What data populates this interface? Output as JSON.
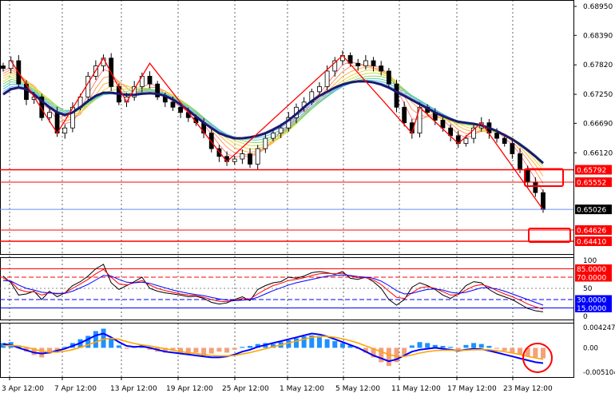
{
  "chart_data": [
    {
      "panel": "price",
      "type": "candlestick",
      "y_ticks": [
        "0.68950",
        "0.68390",
        "0.67820",
        "0.67250",
        "0.66690",
        "0.66120"
      ],
      "ylim": [
        0.6441,
        0.6895
      ],
      "current_price": {
        "value": 0.65026,
        "label": "0.65026"
      },
      "horizontal_levels": [
        {
          "value": 0.65792,
          "label": "0.65792",
          "color": "#ff0000"
        },
        {
          "value": 0.65552,
          "label": "0.65552",
          "color": "#ff0000"
        },
        {
          "value": 0.64626,
          "label": "0.64626",
          "color": "#ff0000"
        },
        {
          "value": 0.6441,
          "label": "0.64410",
          "color": "#ff0000"
        }
      ],
      "x_labels": [
        "3 Apr 12:00",
        "7 Apr 12:00",
        "13 Apr 12:00",
        "19 Apr 12:00",
        "25 Apr 12:00",
        "1 May 12:00",
        "5 May 12:00",
        "11 May 12:00",
        "17 May 12:00",
        "23 May 12:00"
      ],
      "close_series": [
        0.6775,
        0.679,
        0.6745,
        0.6715,
        0.672,
        0.668,
        0.669,
        0.665,
        0.666,
        0.67,
        0.672,
        0.676,
        0.678,
        0.6795,
        0.674,
        0.671,
        0.672,
        0.674,
        0.676,
        0.6745,
        0.672,
        0.671,
        0.67,
        0.669,
        0.668,
        0.667,
        0.665,
        0.662,
        0.6605,
        0.6595,
        0.66,
        0.661,
        0.659,
        0.662,
        0.664,
        0.665,
        0.666,
        0.668,
        0.67,
        0.671,
        0.673,
        0.674,
        0.677,
        0.679,
        0.68,
        0.6785,
        0.678,
        0.679,
        0.678,
        0.677,
        0.6745,
        0.67,
        0.667,
        0.665,
        0.67,
        0.669,
        0.6675,
        0.666,
        0.6645,
        0.663,
        0.664,
        0.666,
        0.667,
        0.665,
        0.664,
        0.663,
        0.661,
        0.658,
        0.6555,
        0.6535,
        0.6502
      ],
      "baseline_ma": [
        0.6725,
        0.6735,
        0.6738,
        0.6735,
        0.6725,
        0.6712,
        0.67,
        0.669,
        0.6685,
        0.669,
        0.67,
        0.6712,
        0.6722,
        0.6728,
        0.6728,
        0.6726,
        0.6724,
        0.6724,
        0.6726,
        0.6727,
        0.6726,
        0.6722,
        0.6715,
        0.6705,
        0.6694,
        0.6682,
        0.667,
        0.666,
        0.665,
        0.6644,
        0.664,
        0.664,
        0.6642,
        0.6645,
        0.665,
        0.6657,
        0.6665,
        0.6675,
        0.6687,
        0.67,
        0.6712,
        0.6722,
        0.673,
        0.6738,
        0.6744,
        0.6748,
        0.675,
        0.675,
        0.6748,
        0.6744,
        0.6738,
        0.673,
        0.6722,
        0.6714,
        0.6706,
        0.6698,
        0.669,
        0.6683,
        0.6677,
        0.6672,
        0.667,
        0.6668,
        0.6665,
        0.666,
        0.6654,
        0.6646,
        0.6638,
        0.6628,
        0.6617,
        0.6605,
        0.6592
      ],
      "zigzag": [
        0.679,
        0.665,
        0.6795,
        0.671,
        0.6785,
        0.6595,
        0.68,
        0.665,
        0.67,
        0.663,
        0.667,
        0.6502
      ]
    },
    {
      "panel": "rsi",
      "type": "line",
      "y_ticks": [
        "100",
        "85.0000",
        "70.0000",
        "50",
        "30.0000",
        "15.0000",
        "0"
      ],
      "ylim": [
        0,
        100
      ],
      "levels": [
        {
          "value": 85,
          "label": "85.0000",
          "color": "#ff0000"
        },
        {
          "value": 70,
          "label": "70.0000",
          "color": "#ff0000"
        },
        {
          "value": 30,
          "label": "30.0000",
          "color": "#0000ff"
        },
        {
          "value": 15,
          "label": "15.0000",
          "color": "#0000ff"
        }
      ],
      "series": [
        {
          "color": "#000000",
          "values": [
            72,
            60,
            38,
            40,
            45,
            30,
            45,
            35,
            42,
            55,
            62,
            72,
            85,
            93,
            60,
            48,
            55,
            62,
            70,
            50,
            45,
            42,
            40,
            38,
            35,
            36,
            32,
            25,
            22,
            24,
            30,
            35,
            28,
            48,
            55,
            60,
            62,
            70,
            68,
            72,
            78,
            80,
            78,
            75,
            80,
            68,
            66,
            70,
            62,
            50,
            30,
            20,
            30,
            52,
            60,
            55,
            48,
            38,
            32,
            40,
            55,
            62,
            60,
            48,
            40,
            35,
            30,
            22,
            14,
            10,
            8
          ]
        },
        {
          "color": "#ff0000",
          "values": [
            68,
            62,
            48,
            44,
            44,
            38,
            42,
            40,
            42,
            50,
            58,
            66,
            76,
            84,
            70,
            58,
            56,
            60,
            64,
            56,
            50,
            46,
            43,
            40,
            38,
            37,
            34,
            30,
            27,
            26,
            28,
            32,
            31,
            40,
            48,
            55,
            59,
            64,
            66,
            69,
            73,
            76,
            77,
            76,
            77,
            72,
            69,
            69,
            65,
            57,
            45,
            34,
            32,
            42,
            51,
            53,
            50,
            44,
            38,
            39,
            47,
            54,
            57,
            53,
            46,
            40,
            35,
            29,
            22,
            17,
            13
          ]
        },
        {
          "color": "#0000ff",
          "values": [
            64,
            63,
            56,
            50,
            47,
            43,
            42,
            41,
            41,
            45,
            51,
            57,
            65,
            73,
            72,
            66,
            61,
            60,
            61,
            59,
            55,
            51,
            47,
            44,
            41,
            39,
            37,
            34,
            31,
            29,
            28,
            29,
            30,
            34,
            40,
            46,
            51,
            56,
            60,
            63,
            66,
            69,
            72,
            73,
            74,
            73,
            71,
            70,
            68,
            63,
            55,
            46,
            40,
            41,
            45,
            48,
            49,
            47,
            43,
            41,
            43,
            47,
            51,
            51,
            49,
            45,
            40,
            35,
            30,
            25,
            20
          ]
        }
      ]
    },
    {
      "panel": "macd",
      "type": "bar+line",
      "y_ticks": [
        "0.0042473",
        "0.00",
        "-0.0051045"
      ],
      "ylim": [
        -0.0051045,
        0.0042473
      ],
      "histogram": [
        0.001,
        0.0012,
        0.0005,
        -0.0008,
        -0.0015,
        -0.002,
        -0.0012,
        -0.0005,
        0.0002,
        0.001,
        0.0018,
        0.0025,
        0.0035,
        0.004,
        0.002,
        0.0005,
        -0.0002,
        0.0003,
        0.0006,
        -0.0004,
        -0.0008,
        -0.001,
        -0.0006,
        -0.0012,
        -0.0014,
        -0.001,
        -0.0016,
        -0.0012,
        -0.0008,
        -0.001,
        -0.0004,
        0.0002,
        0.0004,
        0.0008,
        0.001,
        0.0008,
        0.0012,
        0.0016,
        0.002,
        0.0024,
        0.0026,
        0.0022,
        0.0018,
        0.0014,
        0.001,
        0.0005,
        -0.0002,
        -0.001,
        -0.002,
        -0.003,
        -0.0038,
        -0.003,
        -0.0015,
        0.0005,
        0.0012,
        0.001,
        0.0006,
        0.0004,
        0.0002,
        -0.0004,
        0.0006,
        0.001,
        0.0008,
        0.0004,
        -0.0002,
        -0.0006,
        -0.001,
        -0.0014,
        -0.0018,
        -0.002,
        -0.0022
      ],
      "series": [
        {
          "color": "#0000ff",
          "values": [
            0.0008,
            0.0006,
            0.0,
            -0.0005,
            -0.001,
            -0.0012,
            -0.001,
            -0.0006,
            -0.0002,
            0.0004,
            0.001,
            0.0018,
            0.0026,
            0.003,
            0.0022,
            0.0012,
            0.0004,
            0.0002,
            0.0003,
            0.0,
            -0.0004,
            -0.0008,
            -0.001,
            -0.0012,
            -0.0014,
            -0.0016,
            -0.0018,
            -0.002,
            -0.002,
            -0.0018,
            -0.0014,
            -0.0008,
            -0.0004,
            0.0002,
            0.0006,
            0.001,
            0.0014,
            0.0018,
            0.0022,
            0.0026,
            0.003,
            0.0028,
            0.0024,
            0.0018,
            0.0012,
            0.0006,
            0.0,
            -0.0008,
            -0.0016,
            -0.0022,
            -0.0028,
            -0.0024,
            -0.0016,
            -0.0008,
            -0.0004,
            -0.0002,
            0.0,
            -0.0002,
            -0.0004,
            -0.0006,
            -0.0004,
            -0.0002,
            -0.0003,
            -0.0006,
            -0.001,
            -0.0014,
            -0.0018,
            -0.0022,
            -0.0026,
            -0.003,
            -0.0032
          ]
        },
        {
          "color": "#ffa500",
          "values": [
            0.0004,
            0.0005,
            0.0004,
            0.0001,
            -0.0003,
            -0.0007,
            -0.0009,
            -0.0009,
            -0.0007,
            -0.0004,
            0.0001,
            0.0006,
            0.0012,
            0.0018,
            0.002,
            0.0018,
            0.0013,
            0.0009,
            0.0006,
            0.0004,
            0.0001,
            -0.0002,
            -0.0005,
            -0.0008,
            -0.001,
            -0.0012,
            -0.0014,
            -0.0016,
            -0.0017,
            -0.0017,
            -0.0016,
            -0.0013,
            -0.001,
            -0.0006,
            -0.0002,
            0.0002,
            0.0006,
            0.001,
            0.0014,
            0.0018,
            0.0022,
            0.0024,
            0.0024,
            0.0022,
            0.0019,
            0.0015,
            0.001,
            0.0004,
            -0.0002,
            -0.0008,
            -0.0014,
            -0.0018,
            -0.0018,
            -0.0015,
            -0.0011,
            -0.0008,
            -0.0006,
            -0.0005,
            -0.0005,
            -0.0005,
            -0.0005,
            -0.0004,
            -0.0004,
            -0.0004,
            -0.0006,
            -0.0008,
            -0.0011,
            -0.0014,
            -0.0018,
            -0.0021,
            -0.0024
          ]
        }
      ]
    }
  ]
}
